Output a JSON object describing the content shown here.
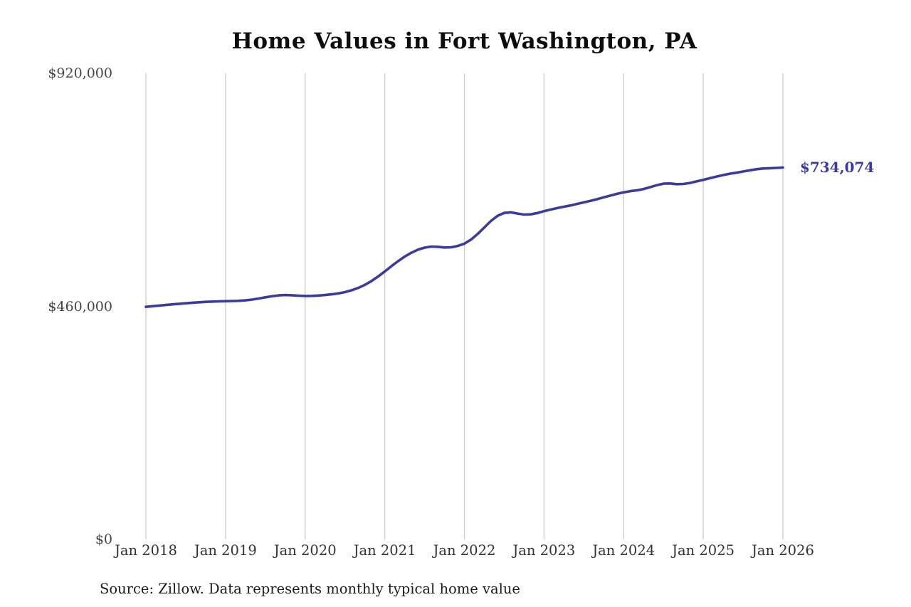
{
  "chart_data": {
    "type": "line",
    "title": "Home Values in Fort Washington, PA",
    "source_note": "Source: Zillow. Data represents monthly typical home value",
    "end_label": "$734,074",
    "line_color": "#3b3b9d",
    "grid_color": "#cccccc",
    "grid": "vertical",
    "legend": "none",
    "x_unit": "month",
    "x_range": [
      "Jan 2018",
      "Jan 2026"
    ],
    "x_tick_labels": [
      "Jan 2018",
      "Jan 2019",
      "Jan 2020",
      "Jan 2021",
      "Jan 2022",
      "Jan 2023",
      "Jan 2024",
      "Jan 2025",
      "Jan 2026"
    ],
    "y_ticks": [
      {
        "label": "$0",
        "value": 0
      },
      {
        "label": "$460,000",
        "value": 460000
      },
      {
        "label": "$920,000",
        "value": 920000
      }
    ],
    "ylim": [
      0,
      920000
    ],
    "series": [
      {
        "name": "Typical home value",
        "final_value": 734074,
        "values": [
          459000,
          460300,
          461500,
          462700,
          463900,
          465000,
          466100,
          467100,
          468000,
          468800,
          469400,
          469900,
          470200,
          470500,
          470900,
          471800,
          473300,
          475400,
          477800,
          480000,
          481600,
          482300,
          481900,
          481100,
          480500,
          480600,
          481300,
          482400,
          483700,
          485500,
          488100,
          491700,
          496400,
          502400,
          510000,
          519000,
          528800,
          539200,
          549200,
          558200,
          565800,
          571800,
          575900,
          578000,
          577600,
          576200,
          576600,
          579200,
          583800,
          591800,
          602800,
          615800,
          628600,
          638600,
          644400,
          645600,
          643200,
          641200,
          641600,
          644200,
          648000,
          651000,
          654000,
          656600,
          659200,
          662200,
          665200,
          668200,
          671600,
          675200,
          678600,
          682000,
          685000,
          687400,
          689000,
          691600,
          695200,
          699200,
          702200,
          702600,
          701200,
          701600,
          703600,
          706600,
          709600,
          713000,
          716200,
          719200,
          721800,
          723800,
          726200,
          728600,
          730600,
          732000,
          732600,
          733200,
          734074
        ]
      }
    ]
  }
}
